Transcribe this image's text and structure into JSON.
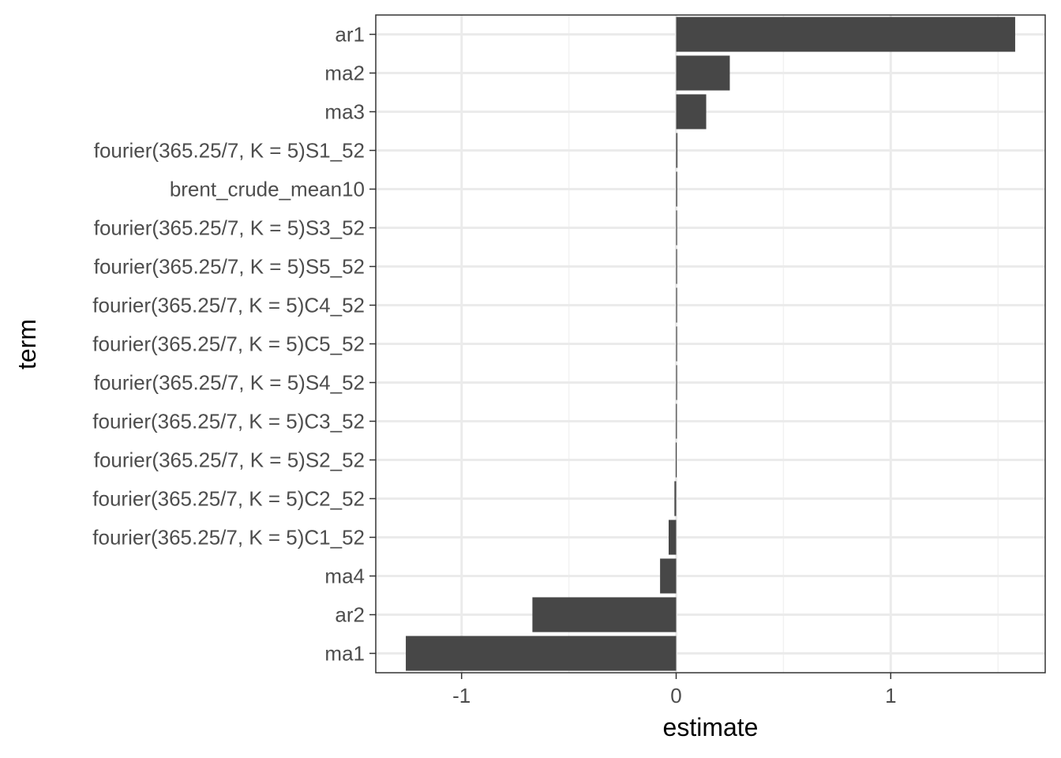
{
  "chart_data": {
    "type": "bar",
    "orientation": "horizontal",
    "xlabel": "estimate",
    "ylabel": "term",
    "xlim": [
      -1.4,
      1.72
    ],
    "xticks": [
      -1,
      0,
      1
    ],
    "xtick_labels": [
      "-1",
      "0",
      "1"
    ],
    "grid": true,
    "bar_color": "#474747",
    "categories": [
      "ar1",
      "ma2",
      "ma3",
      "fourier(365.25/7, K = 5)S1_52",
      "brent_crude_mean10",
      "fourier(365.25/7, K = 5)S3_52",
      "fourier(365.25/7, K = 5)S5_52",
      "fourier(365.25/7, K = 5)C4_52",
      "fourier(365.25/7, K = 5)C5_52",
      "fourier(365.25/7, K = 5)S4_52",
      "fourier(365.25/7, K = 5)C3_52",
      "fourier(365.25/7, K = 5)S2_52",
      "fourier(365.25/7, K = 5)C2_52",
      "fourier(365.25/7, K = 5)C1_52",
      "ma4",
      "ar2",
      "ma1"
    ],
    "values": [
      1.58,
      0.25,
      0.14,
      0.006,
      0.005,
      0.003,
      0.002,
      0.001,
      0.001,
      0.001,
      -0.001,
      -0.002,
      -0.008,
      -0.035,
      -0.075,
      -0.67,
      -1.26
    ]
  }
}
